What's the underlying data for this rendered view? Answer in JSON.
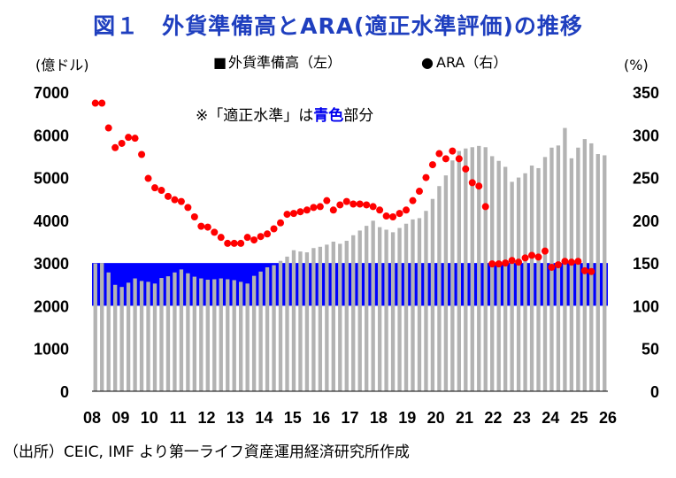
{
  "header": {
    "title": "図１　外貨準備高とARA(適正水準評価)の推移"
  },
  "source": "（出所）CEIC, IMF より第一ライフ資産運用経済研究所作成",
  "colors": {
    "title": "#1f3fbf",
    "bars": "#b3b3b3",
    "band": "#0000ff",
    "ara": "#ff0000"
  },
  "chart_data": {
    "type": "bar+scatter",
    "left_unit": "(億ドル)",
    "right_unit": "(%)",
    "left_ylim": [
      0,
      7000
    ],
    "right_ylim": [
      0,
      350
    ],
    "left_ticks": [
      "0",
      "1000",
      "2000",
      "3000",
      "4000",
      "5000",
      "6000",
      "7000"
    ],
    "right_ticks": [
      "0",
      "50",
      "100",
      "150",
      "200",
      "250",
      "300",
      "350"
    ],
    "x_ticks": [
      "08",
      "09",
      "10",
      "11",
      "12",
      "13",
      "14",
      "15",
      "16",
      "17",
      "18",
      "19",
      "20",
      "21",
      "22",
      "23",
      "24",
      "25",
      "26"
    ],
    "grid": false,
    "legend": [
      {
        "marker": "■",
        "label": "外貨準備高（左）"
      },
      {
        "marker": "●",
        "label": "ARA（右）"
      }
    ],
    "band": {
      "note_prefix": "※「適正水準」は",
      "note_highlight": "青色",
      "note_suffix": "部分",
      "from_pct": 100,
      "to_pct": 150
    },
    "reserves": [
      2990,
      3000,
      2780,
      2490,
      2440,
      2540,
      2640,
      2580,
      2560,
      2520,
      2650,
      2690,
      2780,
      2850,
      2760,
      2680,
      2640,
      2610,
      2620,
      2640,
      2620,
      2600,
      2560,
      2520,
      2700,
      2800,
      2900,
      2950,
      3050,
      3150,
      3300,
      3270,
      3250,
      3350,
      3380,
      3430,
      3500,
      3450,
      3520,
      3650,
      3760,
      3870,
      3990,
      3840,
      3780,
      3720,
      3820,
      3920,
      4020,
      4050,
      4220,
      4500,
      4800,
      5050,
      5400,
      5620,
      5680,
      5710,
      5740,
      5710,
      5500,
      5390,
      5250,
      4900,
      5000,
      5100,
      5280,
      5220,
      5480,
      5700,
      5750,
      6160,
      5450,
      5700,
      5900,
      5800,
      5550,
      5520
    ],
    "ara": [
      {
        "x": 0,
        "y": 337
      },
      {
        "x": 1,
        "y": 337
      },
      {
        "x": 2,
        "y": 308
      },
      {
        "x": 3,
        "y": 285
      },
      {
        "x": 4,
        "y": 290
      },
      {
        "x": 5,
        "y": 297
      },
      {
        "x": 6,
        "y": 296
      },
      {
        "x": 7,
        "y": 277
      },
      {
        "x": 8,
        "y": 249
      },
      {
        "x": 9,
        "y": 238
      },
      {
        "x": 10,
        "y": 235
      },
      {
        "x": 11,
        "y": 228
      },
      {
        "x": 12,
        "y": 224
      },
      {
        "x": 13,
        "y": 222
      },
      {
        "x": 14,
        "y": 215
      },
      {
        "x": 15,
        "y": 204
      },
      {
        "x": 16,
        "y": 193
      },
      {
        "x": 17,
        "y": 192
      },
      {
        "x": 18,
        "y": 186
      },
      {
        "x": 19,
        "y": 180
      },
      {
        "x": 20,
        "y": 173
      },
      {
        "x": 21,
        "y": 173
      },
      {
        "x": 22,
        "y": 173
      },
      {
        "x": 23,
        "y": 180
      },
      {
        "x": 24,
        "y": 177
      },
      {
        "x": 25,
        "y": 181
      },
      {
        "x": 26,
        "y": 184
      },
      {
        "x": 27,
        "y": 190
      },
      {
        "x": 28,
        "y": 197
      },
      {
        "x": 29,
        "y": 207
      },
      {
        "x": 30,
        "y": 208
      },
      {
        "x": 31,
        "y": 210
      },
      {
        "x": 32,
        "y": 212
      },
      {
        "x": 33,
        "y": 215
      },
      {
        "x": 34,
        "y": 216
      },
      {
        "x": 35,
        "y": 223
      },
      {
        "x": 36,
        "y": 212
      },
      {
        "x": 37,
        "y": 218
      },
      {
        "x": 38,
        "y": 222
      },
      {
        "x": 39,
        "y": 219
      },
      {
        "x": 40,
        "y": 219
      },
      {
        "x": 41,
        "y": 218
      },
      {
        "x": 42,
        "y": 216
      },
      {
        "x": 43,
        "y": 212
      },
      {
        "x": 44,
        "y": 205
      },
      {
        "x": 45,
        "y": 204
      },
      {
        "x": 46,
        "y": 208
      },
      {
        "x": 47,
        "y": 212
      },
      {
        "x": 48,
        "y": 223
      },
      {
        "x": 49,
        "y": 234
      },
      {
        "x": 50,
        "y": 250
      },
      {
        "x": 51,
        "y": 265
      },
      {
        "x": 52,
        "y": 278
      },
      {
        "x": 53,
        "y": 272
      },
      {
        "x": 54,
        "y": 281
      },
      {
        "x": 55,
        "y": 272
      },
      {
        "x": 56,
        "y": 260
      },
      {
        "x": 57,
        "y": 244
      },
      {
        "x": 58,
        "y": 240
      },
      {
        "x": 59,
        "y": 216
      },
      {
        "x": 60,
        "y": 149
      },
      {
        "x": 61,
        "y": 149
      },
      {
        "x": 62,
        "y": 150
      },
      {
        "x": 63,
        "y": 153
      },
      {
        "x": 64,
        "y": 151
      },
      {
        "x": 65,
        "y": 156
      },
      {
        "x": 66,
        "y": 159
      },
      {
        "x": 67,
        "y": 157
      },
      {
        "x": 68,
        "y": 164
      },
      {
        "x": 69,
        "y": 145
      },
      {
        "x": 70,
        "y": 148
      },
      {
        "x": 71,
        "y": 152
      },
      {
        "x": 72,
        "y": 151
      },
      {
        "x": 73,
        "y": 152
      },
      {
        "x": 74,
        "y": 141
      },
      {
        "x": 75,
        "y": 140
      }
    ]
  }
}
